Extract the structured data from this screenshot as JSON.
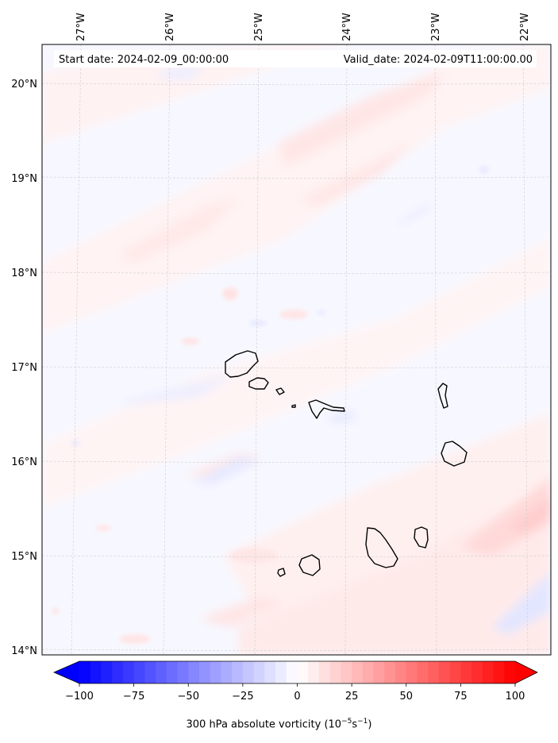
{
  "map": {
    "start_date": "Start date: 2024-02-09_00:00:00",
    "valid_date": "Valid_date: 2024-02-09T11:00:00.00",
    "lon_labels": [
      "27°W",
      "26°W",
      "25°W",
      "24°W",
      "23°W",
      "22°W"
    ],
    "lat_labels": [
      "20°N",
      "19°N",
      "18°N",
      "17°N",
      "16°N",
      "15°N",
      "14°N"
    ],
    "field": "300 hPa absolute vorticity",
    "islands": [
      "Santo Antão",
      "São Vicente",
      "Santa Luzia",
      "São Nicolau",
      "Sal",
      "Boa Vista",
      "Maio",
      "Santiago",
      "Fogo",
      "Brava"
    ]
  },
  "colorbar": {
    "tick_labels": [
      "−100",
      "−75",
      "−50",
      "−25",
      "0",
      "25",
      "50",
      "75",
      "100"
    ],
    "tick_values": [
      -100,
      -75,
      -50,
      -25,
      0,
      25,
      50,
      75,
      100
    ],
    "min": -100,
    "max": 100,
    "extend": "both",
    "colormap": "bwr",
    "label_prefix": "300 hPa absolute vorticity (10",
    "label_exp1": "−5",
    "label_mid": "s",
    "label_exp2": "−1",
    "label_suffix": ")"
  }
}
